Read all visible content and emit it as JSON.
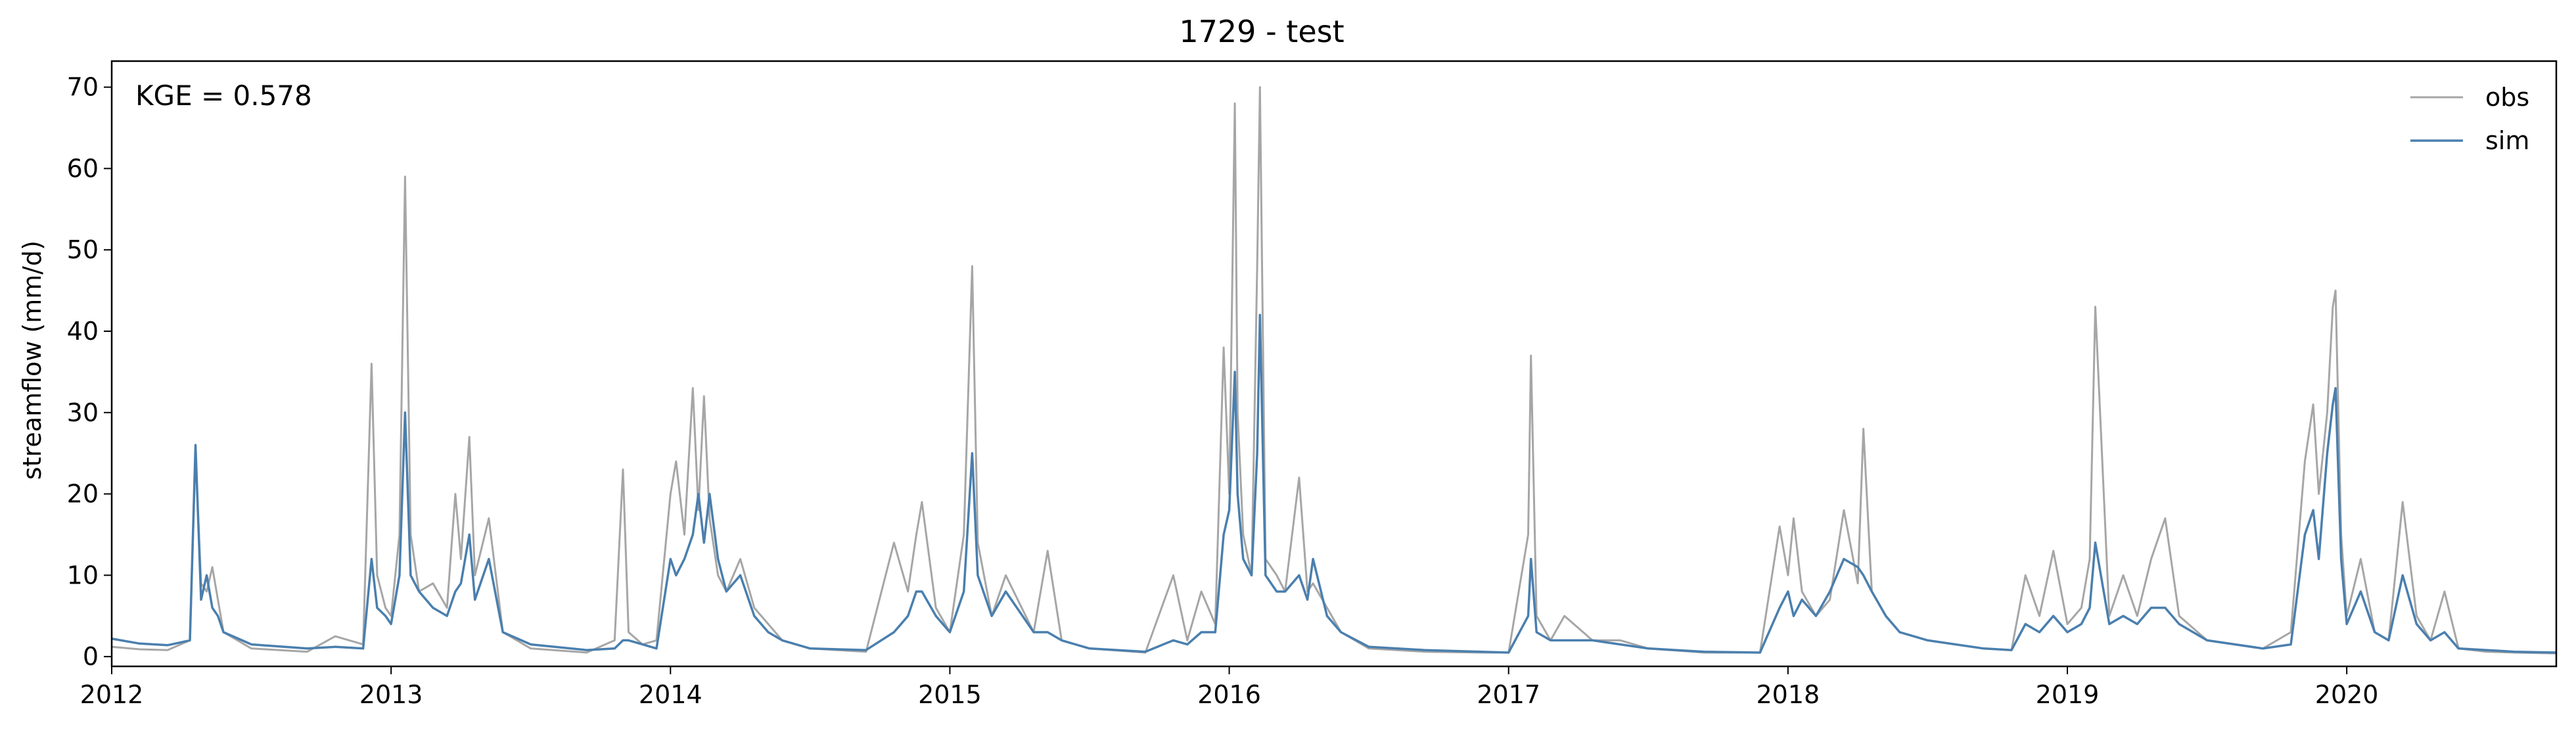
{
  "chart_data": {
    "type": "line",
    "title": "1729 - test",
    "xlabel": "",
    "ylabel": "streamflow (mm/d)",
    "annotation": "KGE = 0.578",
    "xlim": [
      2012.0,
      2020.75
    ],
    "ylim": [
      -1.2,
      73.2
    ],
    "x_ticks": [
      2012,
      2013,
      2014,
      2015,
      2016,
      2017,
      2018,
      2019,
      2020
    ],
    "x_tick_labels": [
      "2012",
      "2013",
      "2014",
      "2015",
      "2016",
      "2017",
      "2018",
      "2019",
      "2020"
    ],
    "y_ticks": [
      0,
      10,
      20,
      30,
      40,
      50,
      60,
      70
    ],
    "y_tick_labels": [
      "0",
      "10",
      "20",
      "30",
      "40",
      "50",
      "60",
      "70"
    ],
    "grid": false,
    "legend_position": "top-right",
    "series": [
      {
        "name": "obs",
        "color": "#a6a6a6",
        "x": [
          2012.0,
          2012.1,
          2012.2,
          2012.28,
          2012.3,
          2012.32,
          2012.34,
          2012.36,
          2012.38,
          2012.4,
          2012.5,
          2012.7,
          2012.8,
          2012.9,
          2012.93,
          2012.95,
          2012.98,
          2013.0,
          2013.03,
          2013.05,
          2013.07,
          2013.1,
          2013.15,
          2013.2,
          2013.23,
          2013.25,
          2013.28,
          2013.3,
          2013.35,
          2013.4,
          2013.5,
          2013.7,
          2013.8,
          2013.83,
          2013.85,
          2013.9,
          2013.95,
          2014.0,
          2014.02,
          2014.05,
          2014.08,
          2014.1,
          2014.12,
          2014.14,
          2014.17,
          2014.2,
          2014.25,
          2014.3,
          2014.35,
          2014.4,
          2014.5,
          2014.7,
          2014.8,
          2014.85,
          2014.88,
          2014.9,
          2014.95,
          2015.0,
          2015.05,
          2015.08,
          2015.1,
          2015.15,
          2015.2,
          2015.3,
          2015.35,
          2015.4,
          2015.5,
          2015.7,
          2015.8,
          2015.85,
          2015.9,
          2015.95,
          2015.98,
          2016.0,
          2016.02,
          2016.03,
          2016.05,
          2016.08,
          2016.1,
          2016.11,
          2016.13,
          2016.17,
          2016.2,
          2016.25,
          2016.28,
          2016.3,
          2016.35,
          2016.4,
          2016.5,
          2016.7,
          2016.9,
          2017.0,
          2017.07,
          2017.08,
          2017.1,
          2017.15,
          2017.2,
          2017.3,
          2017.4,
          2017.5,
          2017.7,
          2017.9,
          2017.97,
          2018.0,
          2018.02,
          2018.05,
          2018.1,
          2018.15,
          2018.2,
          2018.25,
          2018.27,
          2018.3,
          2018.35,
          2018.4,
          2018.5,
          2018.7,
          2018.8,
          2018.85,
          2018.9,
          2018.95,
          2019.0,
          2019.05,
          2019.08,
          2019.1,
          2019.15,
          2019.2,
          2019.25,
          2019.3,
          2019.35,
          2019.4,
          2019.5,
          2019.7,
          2019.8,
          2019.85,
          2019.88,
          2019.9,
          2019.93,
          2019.95,
          2019.96,
          2019.98,
          2020.0,
          2020.05,
          2020.1,
          2020.15,
          2020.2,
          2020.25,
          2020.3,
          2020.35,
          2020.4,
          2020.5,
          2020.6,
          2020.75
        ],
        "y": [
          1.2,
          0.9,
          0.8,
          2.0,
          25.0,
          9.0,
          8.0,
          11.0,
          7.0,
          3.0,
          1.0,
          0.6,
          2.5,
          1.5,
          36.0,
          10.0,
          6.0,
          5.0,
          15.0,
          59.0,
          15.0,
          8.0,
          9.0,
          6.0,
          20.0,
          12.0,
          27.0,
          10.0,
          17.0,
          3.0,
          1.0,
          0.5,
          2.0,
          23.0,
          3.0,
          1.5,
          2.0,
          20.0,
          24.0,
          15.0,
          33.0,
          18.0,
          32.0,
          17.0,
          10.0,
          8.0,
          12.0,
          6.0,
          4.0,
          2.0,
          1.0,
          0.6,
          14.0,
          8.0,
          15.0,
          19.0,
          6.0,
          3.0,
          15.0,
          48.0,
          14.0,
          5.0,
          10.0,
          3.0,
          13.0,
          2.0,
          1.0,
          0.5,
          10.0,
          2.0,
          8.0,
          4.0,
          38.0,
          20.0,
          68.0,
          30.0,
          15.0,
          10.0,
          48.0,
          70.0,
          12.0,
          10.0,
          8.0,
          22.0,
          8.0,
          9.0,
          6.0,
          3.0,
          1.0,
          0.6,
          0.5,
          0.5,
          15.0,
          37.0,
          5.0,
          2.0,
          5.0,
          2.0,
          2.0,
          1.0,
          0.5,
          0.5,
          16.0,
          10.0,
          17.0,
          8.0,
          5.0,
          7.0,
          18.0,
          9.0,
          28.0,
          8.0,
          5.0,
          3.0,
          2.0,
          1.0,
          0.8,
          10.0,
          5.0,
          13.0,
          4.0,
          6.0,
          12.0,
          43.0,
          5.0,
          10.0,
          5.0,
          12.0,
          17.0,
          5.0,
          2.0,
          1.0,
          3.0,
          24.0,
          31.0,
          20.0,
          30.0,
          43.0,
          45.0,
          15.0,
          5.0,
          12.0,
          3.0,
          2.0,
          19.0,
          5.0,
          2.0,
          8.0,
          1.0,
          0.6,
          0.5,
          0.4
        ]
      },
      {
        "name": "sim",
        "color": "#4a7fae",
        "x": [
          2012.0,
          2012.1,
          2012.2,
          2012.28,
          2012.3,
          2012.32,
          2012.34,
          2012.36,
          2012.38,
          2012.4,
          2012.5,
          2012.7,
          2012.8,
          2012.9,
          2012.93,
          2012.95,
          2012.98,
          2013.0,
          2013.03,
          2013.05,
          2013.07,
          2013.1,
          2013.15,
          2013.2,
          2013.23,
          2013.25,
          2013.28,
          2013.3,
          2013.35,
          2013.4,
          2013.5,
          2013.7,
          2013.8,
          2013.83,
          2013.85,
          2013.9,
          2013.95,
          2014.0,
          2014.02,
          2014.05,
          2014.08,
          2014.1,
          2014.12,
          2014.14,
          2014.17,
          2014.2,
          2014.25,
          2014.3,
          2014.35,
          2014.4,
          2014.5,
          2014.7,
          2014.8,
          2014.85,
          2014.88,
          2014.9,
          2014.95,
          2015.0,
          2015.05,
          2015.08,
          2015.1,
          2015.15,
          2015.2,
          2015.3,
          2015.35,
          2015.4,
          2015.5,
          2015.7,
          2015.8,
          2015.85,
          2015.9,
          2015.95,
          2015.98,
          2016.0,
          2016.02,
          2016.03,
          2016.05,
          2016.08,
          2016.1,
          2016.11,
          2016.13,
          2016.17,
          2016.2,
          2016.25,
          2016.28,
          2016.3,
          2016.35,
          2016.4,
          2016.5,
          2016.7,
          2016.9,
          2017.0,
          2017.07,
          2017.08,
          2017.1,
          2017.15,
          2017.2,
          2017.3,
          2017.4,
          2017.5,
          2017.7,
          2017.9,
          2017.97,
          2018.0,
          2018.02,
          2018.05,
          2018.1,
          2018.15,
          2018.2,
          2018.25,
          2018.27,
          2018.3,
          2018.35,
          2018.4,
          2018.5,
          2018.7,
          2018.8,
          2018.85,
          2018.9,
          2018.95,
          2019.0,
          2019.05,
          2019.08,
          2019.1,
          2019.15,
          2019.2,
          2019.25,
          2019.3,
          2019.35,
          2019.4,
          2019.5,
          2019.7,
          2019.8,
          2019.85,
          2019.88,
          2019.9,
          2019.93,
          2019.95,
          2019.96,
          2019.98,
          2020.0,
          2020.05,
          2020.1,
          2020.15,
          2020.2,
          2020.25,
          2020.3,
          2020.35,
          2020.4,
          2020.5,
          2020.6,
          2020.75
        ],
        "y": [
          2.2,
          1.6,
          1.4,
          2.0,
          26.0,
          7.0,
          10.0,
          6.0,
          5.0,
          3.0,
          1.5,
          1.0,
          1.2,
          1.0,
          12.0,
          6.0,
          5.0,
          4.0,
          10.0,
          30.0,
          10.0,
          8.0,
          6.0,
          5.0,
          8.0,
          9.0,
          15.0,
          7.0,
          12.0,
          3.0,
          1.5,
          0.8,
          1.0,
          2.0,
          2.0,
          1.5,
          1.0,
          12.0,
          10.0,
          12.0,
          15.0,
          20.0,
          14.0,
          20.0,
          12.0,
          8.0,
          10.0,
          5.0,
          3.0,
          2.0,
          1.0,
          0.8,
          3.0,
          5.0,
          8.0,
          8.0,
          5.0,
          3.0,
          8.0,
          25.0,
          10.0,
          5.0,
          8.0,
          3.0,
          3.0,
          2.0,
          1.0,
          0.6,
          2.0,
          1.5,
          3.0,
          3.0,
          15.0,
          18.0,
          35.0,
          20.0,
          12.0,
          10.0,
          25.0,
          42.0,
          10.0,
          8.0,
          8.0,
          10.0,
          7.0,
          12.0,
          5.0,
          3.0,
          1.2,
          0.8,
          0.6,
          0.5,
          5.0,
          12.0,
          3.0,
          2.0,
          2.0,
          2.0,
          1.5,
          1.0,
          0.6,
          0.5,
          6.0,
          8.0,
          5.0,
          7.0,
          5.0,
          8.0,
          12.0,
          11.0,
          10.0,
          8.0,
          5.0,
          3.0,
          2.0,
          1.0,
          0.8,
          4.0,
          3.0,
          5.0,
          3.0,
          4.0,
          6.0,
          14.0,
          4.0,
          5.0,
          4.0,
          6.0,
          6.0,
          4.0,
          2.0,
          1.0,
          1.5,
          15.0,
          18.0,
          12.0,
          25.0,
          31.0,
          33.0,
          12.0,
          4.0,
          8.0,
          3.0,
          2.0,
          10.0,
          4.0,
          2.0,
          3.0,
          1.0,
          0.8,
          0.6,
          0.5
        ]
      }
    ]
  }
}
